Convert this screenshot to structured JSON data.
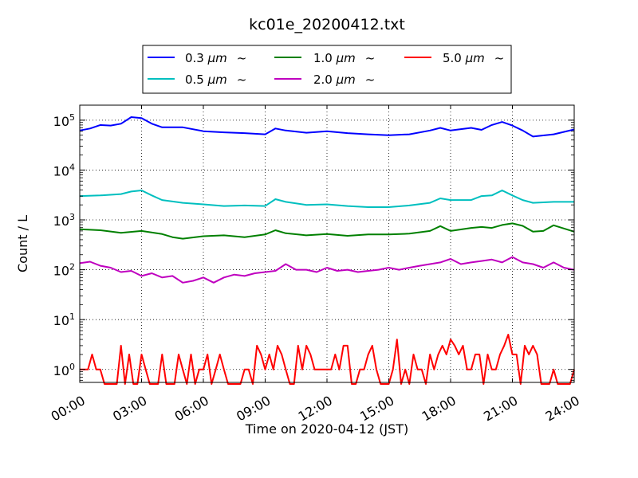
{
  "chart_data": {
    "type": "line",
    "title": "kc01e_20200412.txt",
    "xlabel": "Time on 2020-04-12 (JST)",
    "ylabel": "Count / L",
    "xlim_hours": [
      0,
      24
    ],
    "ylim": [
      0.55,
      200000
    ],
    "yscale": "log",
    "grid": true,
    "legend_position": "top-center",
    "x_ticks": [
      {
        "hour": 0,
        "label": "00:00"
      },
      {
        "hour": 3,
        "label": "03:00"
      },
      {
        "hour": 6,
        "label": "06:00"
      },
      {
        "hour": 9,
        "label": "09:00"
      },
      {
        "hour": 12,
        "label": "12:00"
      },
      {
        "hour": 15,
        "label": "15:00"
      },
      {
        "hour": 18,
        "label": "18:00"
      },
      {
        "hour": 21,
        "label": "21:00"
      },
      {
        "hour": 24,
        "label": "24:00"
      }
    ],
    "y_ticks": [
      {
        "value": 1,
        "base": "10",
        "exp": "0"
      },
      {
        "value": 10,
        "base": "10",
        "exp": "1"
      },
      {
        "value": 100,
        "base": "10",
        "exp": "2"
      },
      {
        "value": 1000,
        "base": "10",
        "exp": "3"
      },
      {
        "value": 10000,
        "base": "10",
        "exp": "4"
      },
      {
        "value": 100000,
        "base": "10",
        "exp": "5"
      }
    ],
    "series": [
      {
        "name": "0.3 µm ~",
        "label_size": "0.3",
        "label_unit": "μm",
        "label_suffix": "~",
        "color": "#0000ff",
        "x": [
          0,
          0.5,
          1,
          1.5,
          2,
          2.5,
          3,
          3.5,
          4,
          5,
          6,
          7,
          8,
          9,
          9.5,
          10,
          11,
          12,
          13,
          14,
          15,
          16,
          17,
          17.5,
          18,
          19,
          19.5,
          20,
          20.5,
          21,
          21.5,
          22,
          23,
          24
        ],
        "y": [
          62000,
          68000,
          80000,
          78000,
          85000,
          115000,
          110000,
          85000,
          72000,
          72000,
          60000,
          57000,
          55000,
          52000,
          68000,
          62000,
          56000,
          60000,
          55000,
          52000,
          50000,
          52000,
          62000,
          70000,
          62000,
          70000,
          64000,
          80000,
          92000,
          78000,
          62000,
          47000,
          52000,
          65000
        ]
      },
      {
        "name": "0.5 µm ~",
        "label_size": "0.5",
        "label_unit": "μm",
        "label_suffix": "~",
        "color": "#00bfbf",
        "x": [
          0,
          1,
          2,
          2.5,
          3,
          3.5,
          4,
          5,
          6,
          7,
          8,
          9,
          9.5,
          10,
          11,
          12,
          13,
          14,
          15,
          16,
          17,
          17.5,
          18,
          19,
          19.5,
          20,
          20.5,
          21,
          21.5,
          22,
          23,
          24
        ],
        "y": [
          3000,
          3100,
          3300,
          3700,
          3900,
          3100,
          2500,
          2200,
          2050,
          1900,
          1950,
          1900,
          2600,
          2300,
          2000,
          2050,
          1900,
          1800,
          1800,
          1950,
          2200,
          2700,
          2500,
          2500,
          3000,
          3100,
          3900,
          3100,
          2500,
          2200,
          2300,
          2300
        ]
      },
      {
        "name": "1.0 µm ~",
        "label_size": "1.0",
        "label_unit": "μm",
        "label_suffix": "~",
        "color": "#008000",
        "x": [
          0,
          1,
          2,
          3,
          4,
          4.5,
          5,
          6,
          7,
          8,
          9,
          9.5,
          10,
          11,
          12,
          13,
          14,
          15,
          16,
          17,
          17.5,
          18,
          19,
          19.5,
          20,
          20.5,
          21,
          21.5,
          22,
          22.5,
          23,
          24
        ],
        "y": [
          650,
          620,
          550,
          600,
          520,
          450,
          420,
          470,
          490,
          450,
          510,
          620,
          540,
          490,
          520,
          480,
          510,
          510,
          530,
          600,
          750,
          600,
          690,
          720,
          690,
          790,
          850,
          760,
          580,
          600,
          780,
          580
        ]
      },
      {
        "name": "2.0 µm ~",
        "label_size": "2.0",
        "label_unit": "μm",
        "label_suffix": "~",
        "color": "#bf00bf",
        "x": [
          0,
          0.5,
          1,
          1.5,
          2,
          2.5,
          3,
          3.5,
          4,
          4.5,
          5,
          5.5,
          6,
          6.5,
          7,
          7.5,
          8,
          8.5,
          9,
          9.5,
          10,
          10.5,
          11,
          11.5,
          12,
          12.5,
          13,
          13.5,
          14,
          14.5,
          15,
          15.5,
          16,
          16.5,
          17,
          17.5,
          18,
          18.5,
          19,
          19.5,
          20,
          20.5,
          21,
          21.5,
          22,
          22.5,
          23,
          23.5,
          24
        ],
        "y": [
          135,
          145,
          120,
          110,
          90,
          95,
          75,
          85,
          70,
          75,
          55,
          60,
          70,
          55,
          70,
          80,
          75,
          85,
          90,
          95,
          130,
          100,
          100,
          90,
          110,
          95,
          100,
          90,
          95,
          100,
          110,
          100,
          110,
          120,
          130,
          140,
          165,
          130,
          140,
          150,
          160,
          140,
          180,
          140,
          130,
          110,
          140,
          110,
          100
        ]
      },
      {
        "name": "5.0 µm ~",
        "label_size": "5.0",
        "label_unit": "μm",
        "label_suffix": "~",
        "color": "#ff0000",
        "x": [
          0,
          0.2,
          0.4,
          0.6,
          0.8,
          1,
          1.2,
          1.4,
          1.6,
          1.8,
          2,
          2.2,
          2.4,
          2.6,
          2.8,
          3,
          3.2,
          3.4,
          3.6,
          3.8,
          4,
          4.2,
          4.4,
          4.6,
          4.8,
          5,
          5.2,
          5.4,
          5.6,
          5.8,
          6,
          6.2,
          6.4,
          6.6,
          6.8,
          7,
          7.2,
          7.4,
          7.6,
          7.8,
          8,
          8.2,
          8.4,
          8.6,
          8.8,
          9,
          9.2,
          9.4,
          9.6,
          9.8,
          10,
          10.2,
          10.4,
          10.6,
          10.8,
          11,
          11.2,
          11.4,
          11.6,
          11.8,
          12,
          12.2,
          12.4,
          12.6,
          12.8,
          13,
          13.2,
          13.4,
          13.6,
          13.8,
          14,
          14.2,
          14.4,
          14.6,
          14.8,
          15,
          15.2,
          15.4,
          15.6,
          15.8,
          16,
          16.2,
          16.4,
          16.6,
          16.8,
          17,
          17.2,
          17.4,
          17.6,
          17.8,
          18,
          18.2,
          18.4,
          18.6,
          18.8,
          19,
          19.2,
          19.4,
          19.6,
          19.8,
          20,
          20.2,
          20.4,
          20.6,
          20.8,
          21,
          21.2,
          21.4,
          21.6,
          21.8,
          22,
          22.2,
          22.4,
          22.6,
          22.8,
          23,
          23.2,
          23.4,
          23.6,
          23.8,
          24
        ],
        "y": [
          1,
          1,
          1,
          2,
          1,
          1,
          0.5,
          0.5,
          0.5,
          0.5,
          3,
          0.5,
          2,
          0.5,
          0.5,
          2,
          1,
          0.5,
          0.5,
          0.5,
          2,
          0.5,
          0.5,
          0.5,
          2,
          1,
          0.5,
          2,
          0.5,
          1,
          1,
          2,
          0.5,
          1,
          2,
          1,
          0.5,
          0.5,
          0.5,
          0.5,
          1,
          1,
          0.5,
          3,
          2,
          1,
          2,
          1,
          3,
          2,
          1,
          0.5,
          0.5,
          3,
          1,
          3,
          2,
          1,
          1,
          1,
          1,
          1,
          2,
          1,
          3,
          3,
          0.5,
          0.5,
          1,
          1,
          2,
          3,
          1,
          0.5,
          0.5,
          0.5,
          1,
          4,
          0.5,
          1,
          0.5,
          2,
          1,
          1,
          0.5,
          2,
          1,
          2,
          3,
          2,
          4,
          3,
          2,
          3,
          1,
          1,
          2,
          2,
          0.5,
          2,
          1,
          1,
          2,
          3,
          5,
          2,
          2,
          0.5,
          3,
          2,
          3,
          2,
          0.5,
          0.5,
          0.5,
          1,
          0.5,
          0.5,
          0.5,
          0.5,
          1
        ]
      }
    ]
  }
}
